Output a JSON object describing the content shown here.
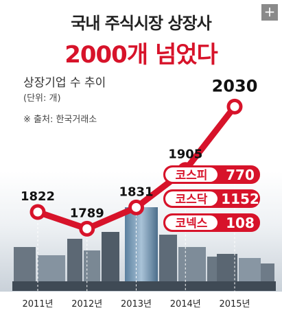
{
  "header": {
    "title_line1": "국내 주식시장 상장사",
    "title_line2": "2000개 넘었다",
    "expand_button": "+"
  },
  "chart_info": {
    "subtitle": "상장기업 수 추이",
    "unit": "(단위: 개)",
    "source": "※ 출처: 한국거래소"
  },
  "chart_data": {
    "type": "line",
    "title": "상장기업 수 추이",
    "x": [
      "2011년",
      "2012년",
      "2013년",
      "2014년",
      "2015년"
    ],
    "series": [
      {
        "values": [
          1822,
          1789,
          1831,
          1905,
          2030
        ]
      }
    ],
    "line_color": "#d7132a",
    "breakdown_2015": [
      {
        "market": "코스피",
        "value": 770
      },
      {
        "market": "코스닥",
        "value": 1152
      },
      {
        "market": "코넥스",
        "value": 108
      }
    ]
  },
  "colors": {
    "accent": "#d7132a",
    "title": "#222222"
  }
}
